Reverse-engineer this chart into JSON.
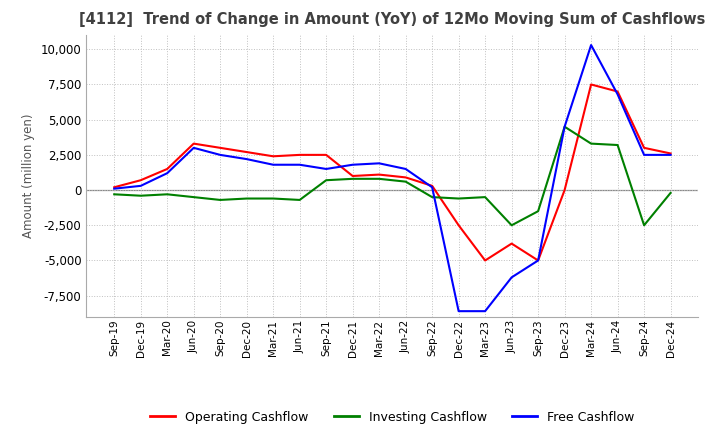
{
  "title": "[4112]  Trend of Change in Amount (YoY) of 12Mo Moving Sum of Cashflows",
  "ylabel": "Amount (million yen)",
  "ylim": [
    -9000,
    11000
  ],
  "yticks": [
    -7500,
    -5000,
    -2500,
    0,
    2500,
    5000,
    7500,
    10000
  ],
  "dates": [
    "Sep-19",
    "Dec-19",
    "Mar-20",
    "Jun-20",
    "Sep-20",
    "Dec-20",
    "Mar-21",
    "Jun-21",
    "Sep-21",
    "Dec-21",
    "Mar-22",
    "Jun-22",
    "Sep-22",
    "Dec-22",
    "Mar-23",
    "Jun-23",
    "Sep-23",
    "Dec-23",
    "Mar-24",
    "Jun-24",
    "Sep-24",
    "Dec-24"
  ],
  "operating": [
    200,
    700,
    1500,
    3300,
    3000,
    2700,
    2400,
    2500,
    2500,
    1000,
    1100,
    900,
    300,
    -2500,
    -5000,
    -3800,
    -5000,
    0,
    7500,
    7000,
    3000,
    2600
  ],
  "investing": [
    -300,
    -400,
    -300,
    -500,
    -700,
    -600,
    -600,
    -700,
    700,
    800,
    800,
    600,
    -500,
    -600,
    -500,
    -2500,
    -1500,
    4500,
    3300,
    3200,
    -2500,
    -200
  ],
  "free": [
    100,
    300,
    1200,
    3000,
    2500,
    2200,
    1800,
    1800,
    1500,
    1800,
    1900,
    1500,
    200,
    -8600,
    -8600,
    -6200,
    -5000,
    4500,
    10300,
    6800,
    2500,
    2500
  ],
  "operating_color": "#ff0000",
  "investing_color": "#008000",
  "free_color": "#0000ff",
  "grid_color": "#c0c0c0",
  "grid_style": "dotted",
  "bg_color": "#ffffff",
  "title_color": "#404040",
  "legend_labels": [
    "Operating Cashflow",
    "Investing Cashflow",
    "Free Cashflow"
  ],
  "linewidth": 1.5
}
